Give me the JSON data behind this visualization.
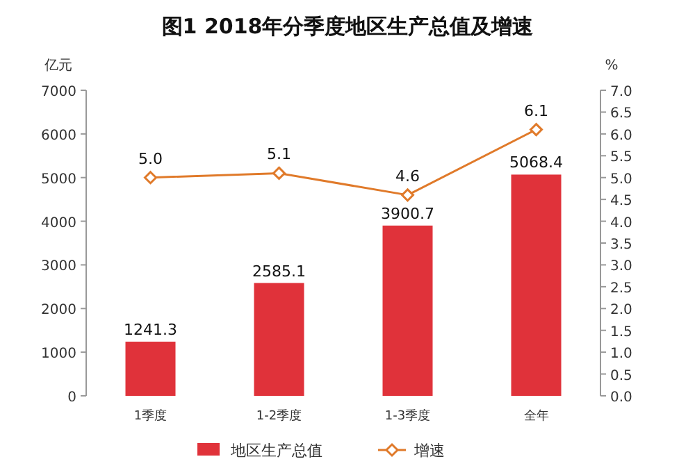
{
  "chart_data": {
    "type": "bar",
    "title": "图1   2018年分季度地区生产总值及增速",
    "categories": [
      "1季度",
      "1-2季度",
      "1-3季度",
      "全年"
    ],
    "series": [
      {
        "name": "地区生产总值",
        "color": "#e0323a",
        "values": [
          1241.3,
          2585.1,
          3900.7,
          5068.4
        ],
        "value_labels": [
          "1241.3",
          "2585.1",
          "3900.7",
          "5068.4"
        ]
      },
      {
        "name": "增速",
        "type": "line",
        "axis": "y2",
        "color": "#e07a2a",
        "marker": "diamond",
        "values": [
          5.0,
          5.1,
          4.6,
          6.1
        ],
        "value_labels": [
          "5.0",
          "5.1",
          "4.6",
          "6.1"
        ]
      }
    ],
    "ylabel": "亿元",
    "y2label": "%",
    "ylim": [
      0,
      7000
    ],
    "yticks": [
      0,
      1000,
      2000,
      3000,
      4000,
      5000,
      6000,
      7000
    ],
    "y2lim": [
      0,
      7
    ],
    "y2ticks": [
      {
        "value": 0,
        "label": "0.0"
      },
      {
        "value": 0.5,
        "label": "0.5"
      },
      {
        "value": 1,
        "label": "1.0"
      },
      {
        "value": 1.5,
        "label": "1.5"
      },
      {
        "value": 2,
        "label": "2.0"
      },
      {
        "value": 2.5,
        "label": "2.5"
      },
      {
        "value": 3,
        "label": "3.0"
      },
      {
        "value": 3.5,
        "label": "3.5"
      },
      {
        "value": 4,
        "label": "4.0"
      },
      {
        "value": 4.5,
        "label": "4.5"
      },
      {
        "value": 5,
        "label": "5.0"
      },
      {
        "value": 5.5,
        "label": "5.5"
      },
      {
        "value": 6,
        "label": "6.0"
      },
      {
        "value": 6.5,
        "label": "6.5"
      },
      {
        "value": 7,
        "label": "7.0"
      }
    ],
    "grid": false,
    "legend": "bottom"
  }
}
